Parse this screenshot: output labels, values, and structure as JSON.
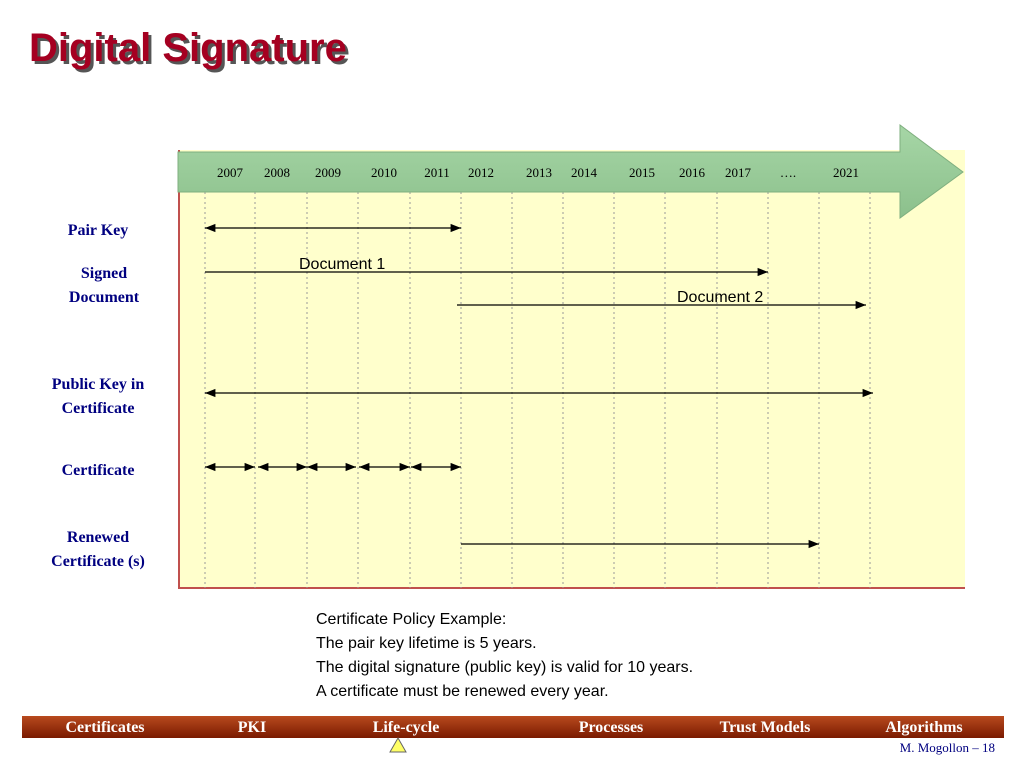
{
  "header": {
    "title": "Digital Signature"
  },
  "timeline": {
    "years": [
      "2007",
      "2008",
      "2009",
      "2010",
      "2011",
      "2012",
      "2013",
      "2014",
      "2015",
      "2016",
      "2017",
      "….",
      "2021"
    ],
    "rows": [
      "Pair Key",
      "Signed Document",
      "Public Key in Certificate",
      "Certificate",
      "Renewed Certificate (s)"
    ],
    "documents": [
      "Document 1",
      "Document 2"
    ]
  },
  "policy": [
    "Certificate Policy Example:",
    "The pair key lifetime is 5 years.",
    "The digital signature (public key) is valid for 10 years.",
    "A certificate must be renewed every year."
  ],
  "nav": [
    "Certificates",
    "PKI",
    "Life-cycle",
    "Processes",
    "Trust Models",
    "Algorithms"
  ],
  "footer": "M. Mogollon – 18"
}
